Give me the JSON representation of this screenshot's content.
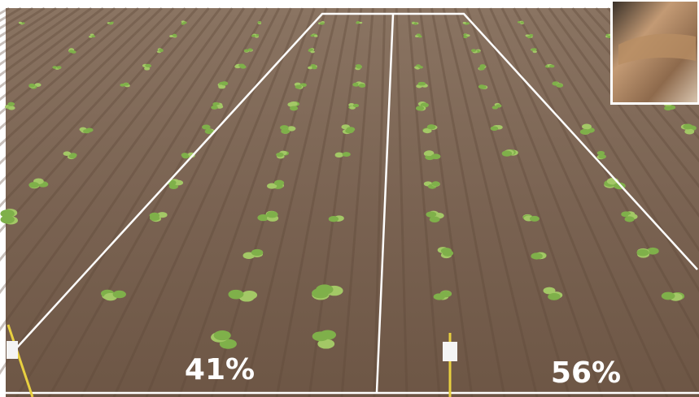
{
  "overlay": {
    "left_label": "41%",
    "right_label": "56%"
  }
}
